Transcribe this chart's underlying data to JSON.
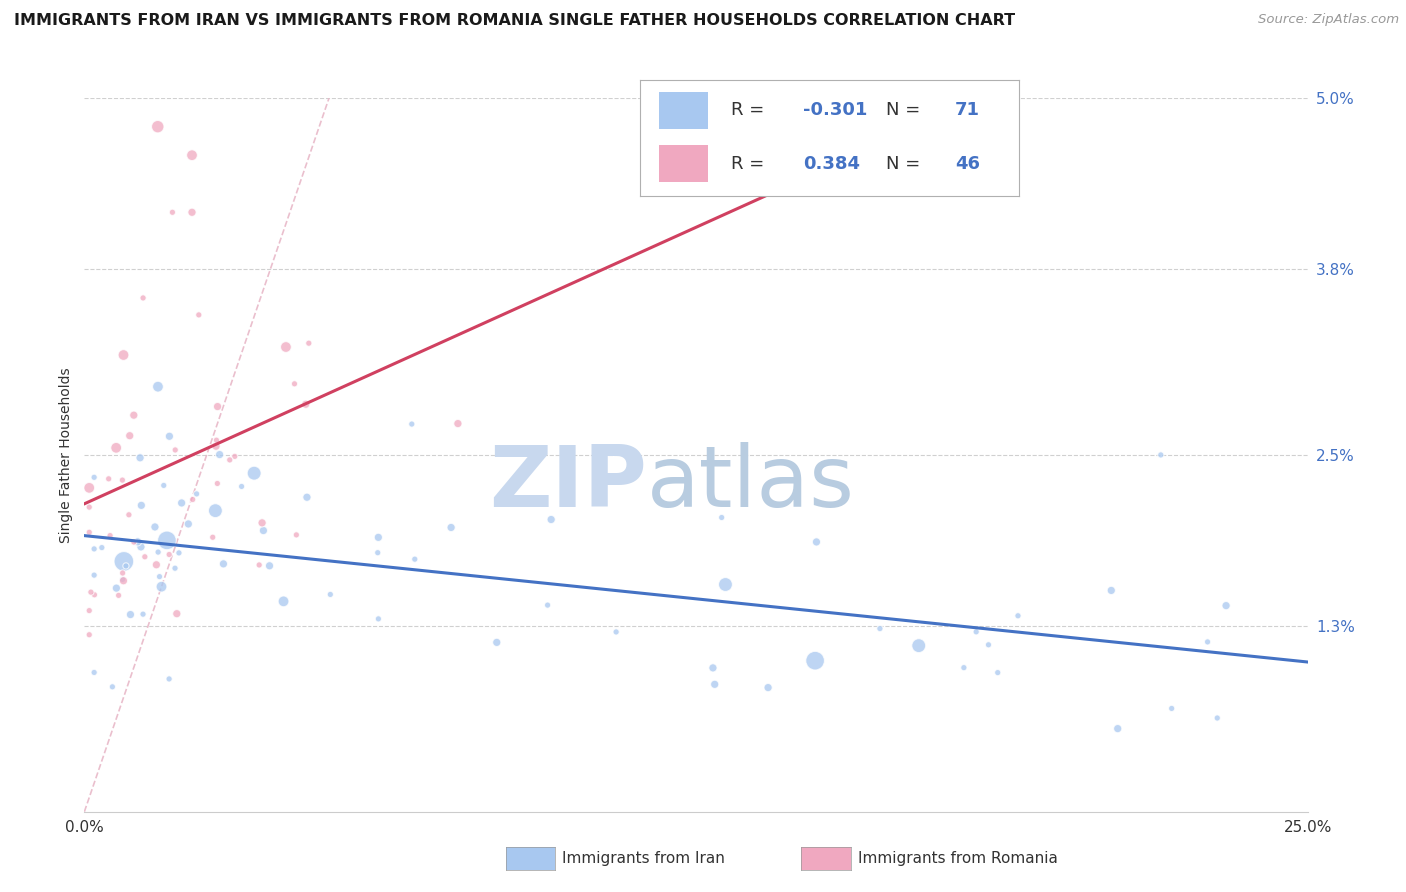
{
  "title": "IMMIGRANTS FROM IRAN VS IMMIGRANTS FROM ROMANIA SINGLE FATHER HOUSEHOLDS CORRELATION CHART",
  "source": "Source: ZipAtlas.com",
  "ylabel": "Single Father Households",
  "legend_label1": "Immigrants from Iran",
  "legend_label2": "Immigrants from Romania",
  "R1": -0.301,
  "N1": 71,
  "R2": 0.384,
  "N2": 46,
  "xlim": [
    0.0,
    0.25
  ],
  "ylim": [
    0.0,
    0.05
  ],
  "xtick_vals": [
    0.0,
    0.05,
    0.1,
    0.15,
    0.2,
    0.25
  ],
  "xtick_labels": [
    "0.0%",
    "",
    "",
    "",
    "",
    "25.0%"
  ],
  "ytick_vals": [
    0.013,
    0.025,
    0.038,
    0.05
  ],
  "ytick_labels": [
    "1.3%",
    "2.5%",
    "3.8%",
    "5.0%"
  ],
  "color_iran": "#a8c8f0",
  "color_romania": "#f0a8c0",
  "trendline_iran_color": "#4472c4",
  "trendline_romania_color": "#d04060",
  "diagonal_color": "#e8b8c8",
  "background": "#ffffff",
  "watermark_zip_color": "#c8d8ee",
  "watermark_atlas_color": "#b8cce0",
  "grid_color": "#d0d0d0",
  "legend_border_color": "#b0b0b0",
  "text_color_dark": "#333333",
  "text_color_blue": "#4472c4",
  "source_color": "#999999"
}
